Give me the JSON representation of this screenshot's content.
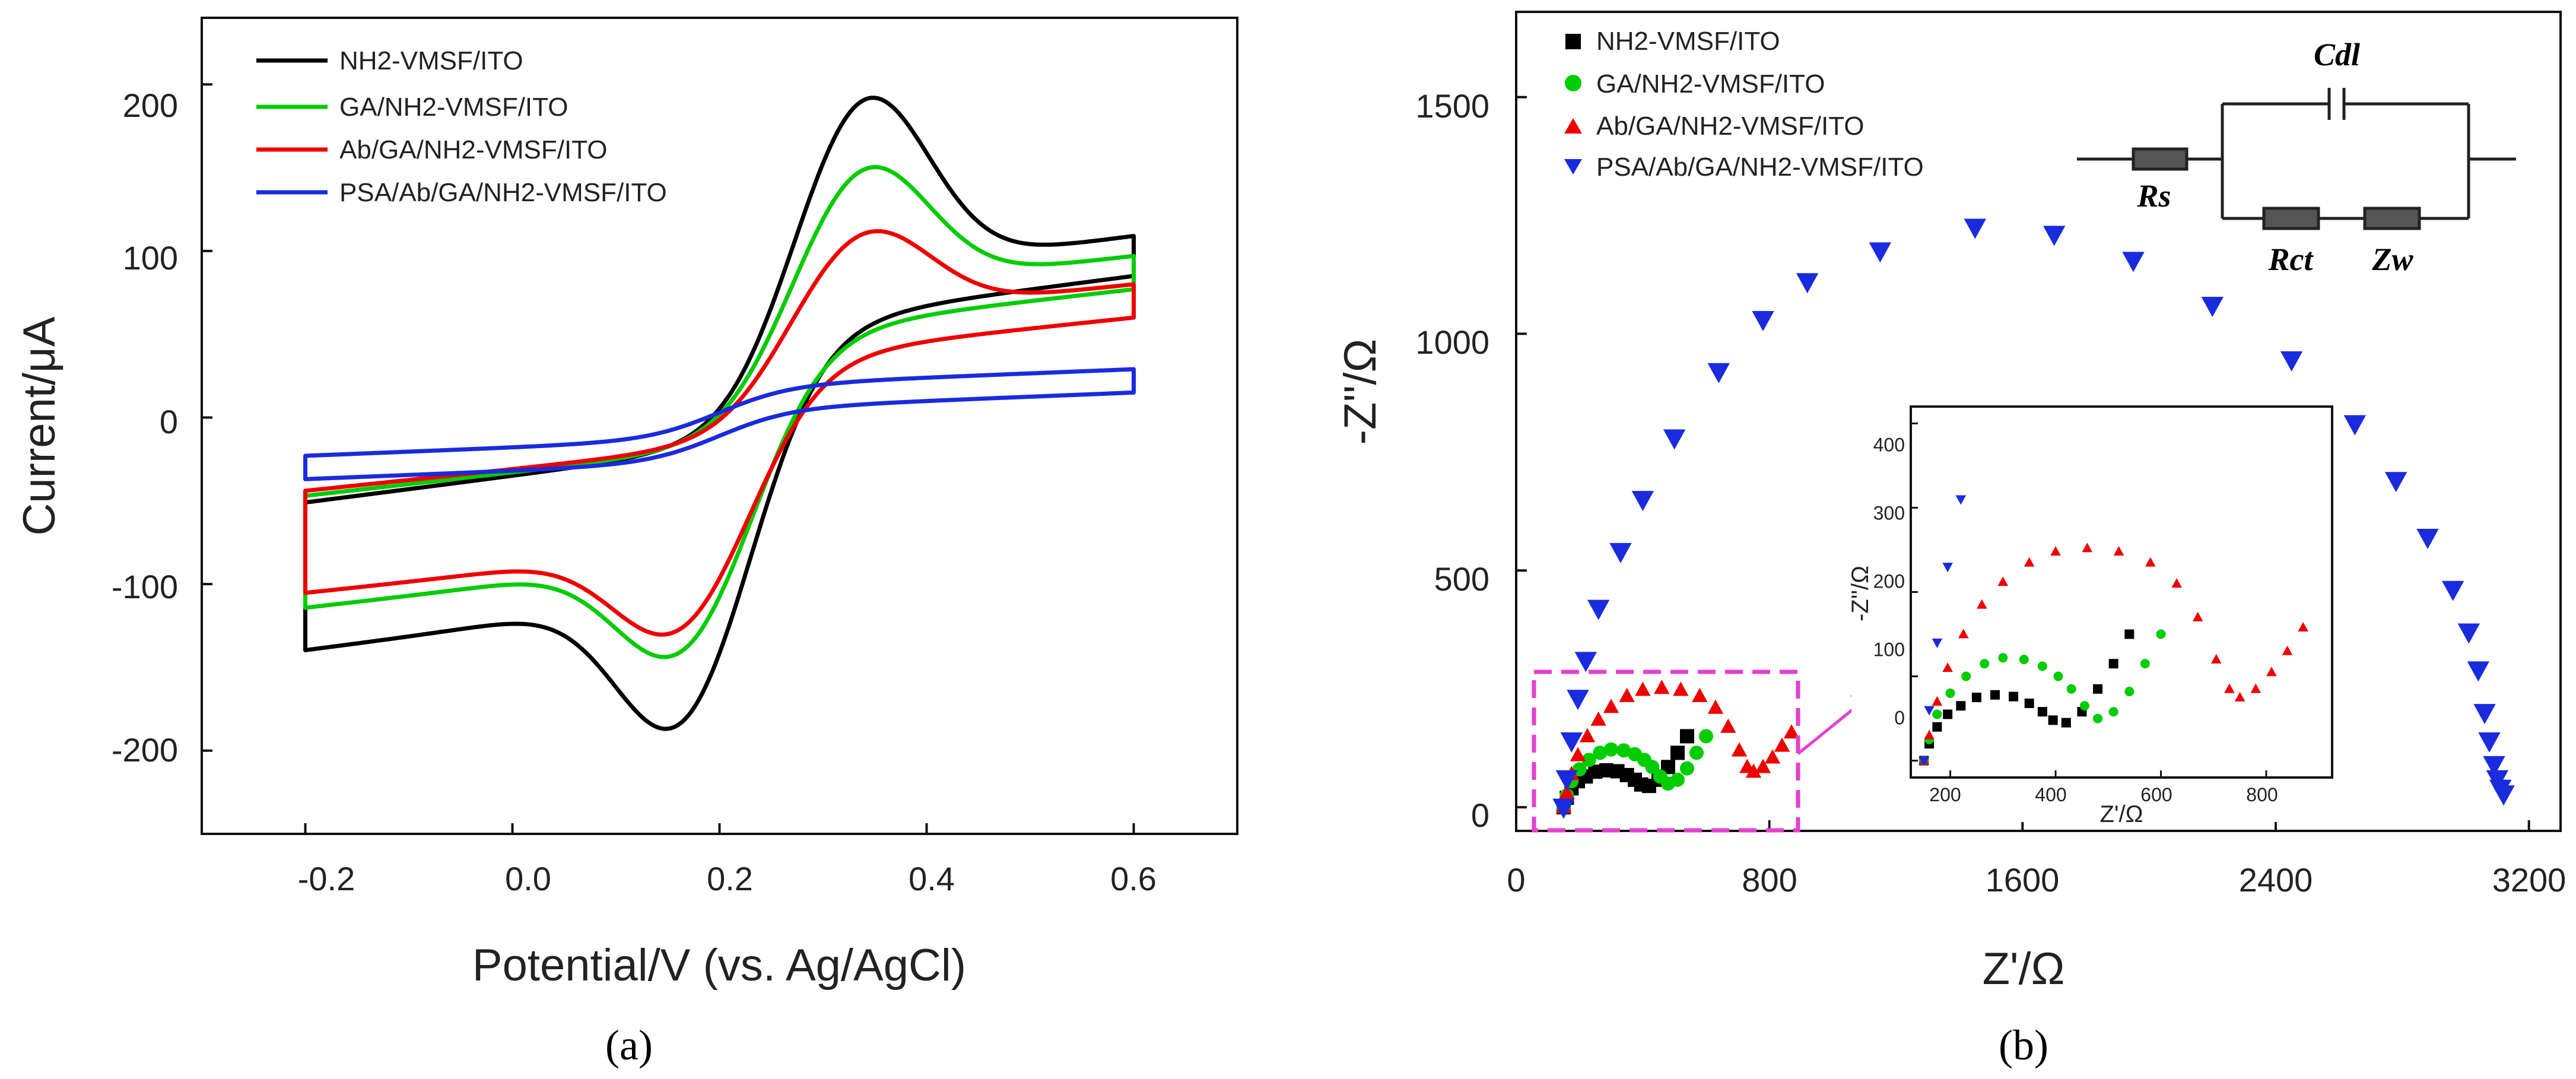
{
  "colors": {
    "s1": "#000000",
    "s2": "#00cc00",
    "s3": "#ee0000",
    "s4": "#1a2bdd",
    "box": "#e63fcf"
  },
  "panel_a": {
    "caption": "(a)",
    "legend": [
      "NH2-VMSF/ITO",
      "GA/NH2-VMSF/ITO",
      "Ab/GA/NH2-VMSF/ITO",
      "PSA/Ab/GA/NH2-VMSF/ITO"
    ]
  },
  "panel_b": {
    "caption": "(b)",
    "legend": [
      "NH2-VMSF/ITO",
      "GA/NH2-VMSF/ITO",
      "Ab/GA/NH2-VMSF/ITO",
      "PSA/Ab/GA/NH2-VMSF/ITO"
    ],
    "circuit_labels": {
      "cdl": "Cdl",
      "rs": "Rs",
      "rct": "Rct",
      "zw": "Zw"
    },
    "inset": {
      "xlabel": "Z'/Ω",
      "ylabel": "-Z''/Ω",
      "xticks": [
        "200",
        "400",
        "600",
        "800"
      ],
      "yticks": [
        "0",
        "100",
        "200",
        "300",
        "400"
      ]
    }
  },
  "chart_data": [
    {
      "type": "line",
      "title": "",
      "xlabel": "Potential/V (vs. Ag/AgCl)",
      "ylabel": "Current/μA",
      "xlim": [
        -0.3,
        0.7
      ],
      "ylim": [
        -250,
        240
      ],
      "xticks": [
        "-0.2",
        "0.0",
        "0.2",
        "0.4",
        "0.6"
      ],
      "yticks": [
        "-200",
        "-100",
        "0",
        "100",
        "200"
      ],
      "cv_params": [
        {
          "name": "NH2-VMSF/ITO",
          "E0": 0.253,
          "dEp": 0.175,
          "ipa": 200,
          "ipc": 185,
          "plateau": 60,
          "slope": 80,
          "cstart": -63,
          "sep": 12
        },
        {
          "name": "GA/NH2-VMSF/ITO",
          "E0": 0.253,
          "dEp": 0.175,
          "ipa": 140,
          "ipc": 135,
          "plateau": 55,
          "slope": 70,
          "cstart": -57,
          "sep": 10
        },
        {
          "name": "Ab/GA/NH2-VMSF/ITO",
          "E0": 0.252,
          "dEp": 0.178,
          "ipa": 96,
          "ipc": 118,
          "plateau": 45,
          "slope": 65,
          "cstart": -54,
          "sep": 10
        },
        {
          "name": "PSA/Ab/GA/NH2-VMSF/ITO",
          "E0": 0.2,
          "dEp": 0.0,
          "ipa": 0,
          "ipc": 0,
          "plateau": 20,
          "slope": 25,
          "cstart": -30,
          "sep": 7
        }
      ]
    },
    {
      "type": "scatter",
      "title": "",
      "xlabel": "Z'/Ω",
      "ylabel": "-Z''/Ω",
      "xlim": [
        0,
        3300
      ],
      "ylim": [
        -50,
        1680
      ],
      "xticks": [
        "0",
        "800",
        "1600",
        "2400",
        "3200"
      ],
      "yticks": [
        "0",
        "500",
        "1000",
        "1500"
      ],
      "series": [
        {
          "name": "NH2-VMSF/ITO",
          "points": [
            [
              150,
              0
            ],
            [
              160,
              20
            ],
            [
              175,
              40
            ],
            [
              195,
              55
            ],
            [
              220,
              65
            ],
            [
              250,
              75
            ],
            [
              285,
              78
            ],
            [
              320,
              76
            ],
            [
              350,
              68
            ],
            [
              375,
              58
            ],
            [
              395,
              48
            ],
            [
              420,
              45
            ],
            [
              450,
              58
            ],
            [
              480,
              85
            ],
            [
              510,
              115
            ],
            [
              540,
              150
            ]
          ]
        },
        {
          "name": "GA/NH2-VMSF/ITO",
          "points": [
            [
              150,
              0
            ],
            [
              160,
              25
            ],
            [
              175,
              55
            ],
            [
              200,
              80
            ],
            [
              230,
              100
            ],
            [
              265,
              115
            ],
            [
              300,
              122
            ],
            [
              340,
              120
            ],
            [
              375,
              112
            ],
            [
              405,
              100
            ],
            [
              430,
              85
            ],
            [
              455,
              65
            ],
            [
              480,
              50
            ],
            [
              510,
              58
            ],
            [
              540,
              82
            ],
            [
              570,
              115
            ],
            [
              600,
              150
            ]
          ]
        },
        {
          "name": "Ab/GA/NH2-VMSF/ITO",
          "points": [
            [
              150,
              0
            ],
            [
              160,
              30
            ],
            [
              175,
              70
            ],
            [
              195,
              110
            ],
            [
              225,
              150
            ],
            [
              260,
              185
            ],
            [
              300,
              212
            ],
            [
              350,
              235
            ],
            [
              400,
              248
            ],
            [
              460,
              252
            ],
            [
              520,
              248
            ],
            [
              580,
              235
            ],
            [
              630,
              210
            ],
            [
              670,
              170
            ],
            [
              705,
              120
            ],
            [
              730,
              85
            ],
            [
              750,
              75
            ],
            [
              780,
              85
            ],
            [
              810,
              105
            ],
            [
              840,
              130
            ],
            [
              870,
              158
            ]
          ]
        },
        {
          "name": "PSA/Ab/GA/NH2-VMSF/ITO",
          "points": [
            [
              150,
              0
            ],
            [
              160,
              60
            ],
            [
              175,
              140
            ],
            [
              195,
              230
            ],
            [
              220,
              310
            ],
            [
              260,
              420
            ],
            [
              330,
              540
            ],
            [
              400,
              650
            ],
            [
              500,
              780
            ],
            [
              640,
              920
            ],
            [
              780,
              1030
            ],
            [
              920,
              1110
            ],
            [
              1150,
              1175
            ],
            [
              1450,
              1225
            ],
            [
              1700,
              1210
            ],
            [
              1950,
              1155
            ],
            [
              2200,
              1060
            ],
            [
              2450,
              945
            ],
            [
              2650,
              810
            ],
            [
              2780,
              690
            ],
            [
              2880,
              570
            ],
            [
              2960,
              460
            ],
            [
              3010,
              370
            ],
            [
              3040,
              290
            ],
            [
              3060,
              200
            ],
            [
              3075,
              140
            ],
            [
              3090,
              90
            ],
            [
              3100,
              60
            ],
            [
              3110,
              40
            ],
            [
              3120,
              28
            ]
          ]
        }
      ]
    }
  ]
}
